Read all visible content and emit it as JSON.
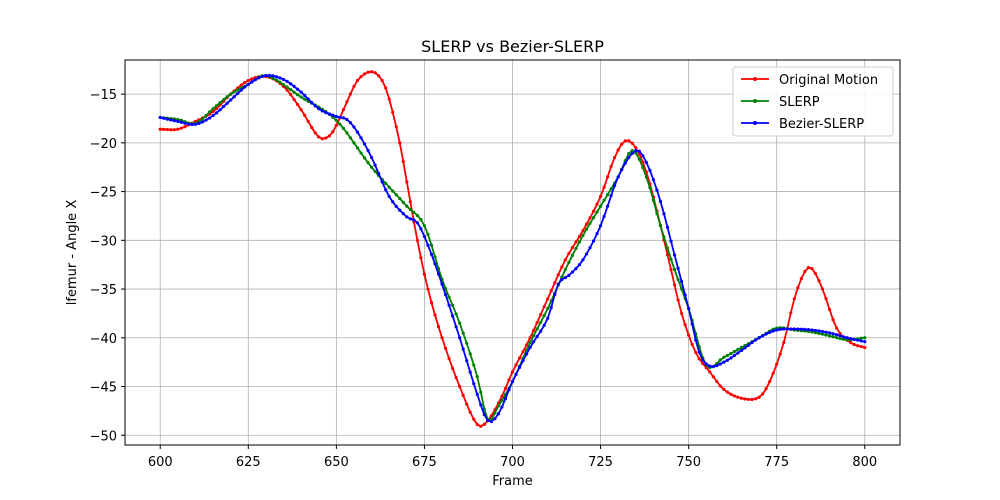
{
  "chart_data": {
    "type": "line",
    "title": "SLERP vs Bezier-SLERP",
    "xlabel": "Frame",
    "ylabel": "lfemur - Angle X",
    "xlim": [
      590,
      810
    ],
    "ylim": [
      -51,
      -11.5
    ],
    "xticks": [
      600,
      625,
      650,
      675,
      700,
      725,
      750,
      775,
      800
    ],
    "yticks": [
      -50,
      -45,
      -40,
      -35,
      -30,
      -25,
      -20,
      -15
    ],
    "xtick_labels": [
      "600",
      "625",
      "650",
      "675",
      "700",
      "725",
      "750",
      "775",
      "800"
    ],
    "ytick_labels": [
      "−50",
      "−45",
      "−40",
      "−35",
      "−30",
      "−25",
      "−20",
      "−15"
    ],
    "grid": true,
    "legend_position": "top-right",
    "series": [
      {
        "name": "Original Motion",
        "color": "#ff0000",
        "points": [
          [
            600,
            -18.6
          ],
          [
            605,
            -18.6
          ],
          [
            610,
            -17.8
          ],
          [
            615,
            -16.8
          ],
          [
            620,
            -15.0
          ],
          [
            625,
            -13.6
          ],
          [
            630,
            -13.2
          ],
          [
            635,
            -14.2
          ],
          [
            640,
            -16.6
          ],
          [
            645,
            -19.4
          ],
          [
            648,
            -19.3
          ],
          [
            650,
            -18.2
          ],
          [
            653,
            -15.8
          ],
          [
            656,
            -13.6
          ],
          [
            660,
            -12.7
          ],
          [
            663,
            -13.6
          ],
          [
            665,
            -15.5
          ],
          [
            668,
            -20.0
          ],
          [
            670,
            -24.0
          ],
          [
            673,
            -30.0
          ],
          [
            676,
            -35.0
          ],
          [
            680,
            -40.0
          ],
          [
            685,
            -45.0
          ],
          [
            690,
            -48.9
          ],
          [
            693,
            -48.5
          ],
          [
            697,
            -46.0
          ],
          [
            700,
            -43.5
          ],
          [
            705,
            -40.0
          ],
          [
            710,
            -36.0
          ],
          [
            715,
            -32.0
          ],
          [
            720,
            -29.0
          ],
          [
            725,
            -25.5
          ],
          [
            729,
            -21.5
          ],
          [
            732,
            -19.8
          ],
          [
            735,
            -20.5
          ],
          [
            738,
            -23.0
          ],
          [
            741,
            -27.0
          ],
          [
            745,
            -33.0
          ],
          [
            748,
            -37.5
          ],
          [
            752,
            -41.5
          ],
          [
            756,
            -43.5
          ],
          [
            760,
            -45.3
          ],
          [
            765,
            -46.2
          ],
          [
            770,
            -46.1
          ],
          [
            773,
            -44.5
          ],
          [
            777,
            -40.5
          ],
          [
            780,
            -36.0
          ],
          [
            783,
            -33.2
          ],
          [
            785,
            -32.9
          ],
          [
            788,
            -35.0
          ],
          [
            792,
            -39.0
          ],
          [
            796,
            -40.5
          ],
          [
            800,
            -41.0
          ]
        ]
      },
      {
        "name": "SLERP",
        "color": "#008000",
        "points": [
          [
            600,
            -17.4
          ],
          [
            605,
            -17.6
          ],
          [
            610,
            -18.0
          ],
          [
            615,
            -16.5
          ],
          [
            620,
            -15.0
          ],
          [
            625,
            -14.0
          ],
          [
            630,
            -13.1
          ],
          [
            640,
            -15.3
          ],
          [
            650,
            -17.7
          ],
          [
            660,
            -22.5
          ],
          [
            670,
            -26.5
          ],
          [
            675,
            -28.5
          ],
          [
            680,
            -34.0
          ],
          [
            685,
            -38.5
          ],
          [
            690,
            -44.0
          ],
          [
            693,
            -48.4
          ],
          [
            696,
            -47.0
          ],
          [
            700,
            -44.5
          ],
          [
            705,
            -40.5
          ],
          [
            710,
            -37.0
          ],
          [
            715,
            -33.0
          ],
          [
            720,
            -29.5
          ],
          [
            725,
            -26.5
          ],
          [
            730,
            -23.5
          ],
          [
            734,
            -20.8
          ],
          [
            738,
            -23.5
          ],
          [
            742,
            -28.5
          ],
          [
            746,
            -33.0
          ],
          [
            750,
            -37.0
          ],
          [
            755,
            -42.8
          ],
          [
            760,
            -42.0
          ],
          [
            765,
            -41.0
          ],
          [
            770,
            -40.0
          ],
          [
            775,
            -39.0
          ],
          [
            780,
            -39.2
          ],
          [
            785,
            -39.4
          ],
          [
            790,
            -39.8
          ],
          [
            795,
            -40.2
          ],
          [
            800,
            -40.0
          ]
        ]
      },
      {
        "name": "Bezier-SLERP",
        "color": "#0000ff",
        "points": [
          [
            600,
            -17.4
          ],
          [
            605,
            -17.8
          ],
          [
            610,
            -18.1
          ],
          [
            615,
            -17.2
          ],
          [
            620,
            -15.6
          ],
          [
            625,
            -14.0
          ],
          [
            630,
            -13.1
          ],
          [
            635,
            -13.5
          ],
          [
            640,
            -14.8
          ],
          [
            645,
            -16.5
          ],
          [
            650,
            -17.3
          ],
          [
            653,
            -17.6
          ],
          [
            656,
            -18.9
          ],
          [
            660,
            -21.5
          ],
          [
            665,
            -25.5
          ],
          [
            670,
            -27.6
          ],
          [
            673,
            -28.2
          ],
          [
            676,
            -30.5
          ],
          [
            680,
            -34.5
          ],
          [
            685,
            -40.0
          ],
          [
            690,
            -45.8
          ],
          [
            693,
            -48.5
          ],
          [
            696,
            -47.8
          ],
          [
            700,
            -44.5
          ],
          [
            705,
            -41.0
          ],
          [
            710,
            -38.0
          ],
          [
            713,
            -34.5
          ],
          [
            716,
            -33.6
          ],
          [
            720,
            -32.0
          ],
          [
            725,
            -28.5
          ],
          [
            730,
            -23.5
          ],
          [
            735,
            -20.8
          ],
          [
            738,
            -22.0
          ],
          [
            742,
            -26.0
          ],
          [
            746,
            -31.5
          ],
          [
            750,
            -37.0
          ],
          [
            753,
            -41.5
          ],
          [
            756,
            -42.9
          ],
          [
            760,
            -42.5
          ],
          [
            765,
            -41.3
          ],
          [
            770,
            -40.0
          ],
          [
            775,
            -39.2
          ],
          [
            780,
            -39.1
          ],
          [
            785,
            -39.2
          ],
          [
            790,
            -39.5
          ],
          [
            795,
            -40.0
          ],
          [
            800,
            -40.4
          ]
        ]
      }
    ]
  }
}
